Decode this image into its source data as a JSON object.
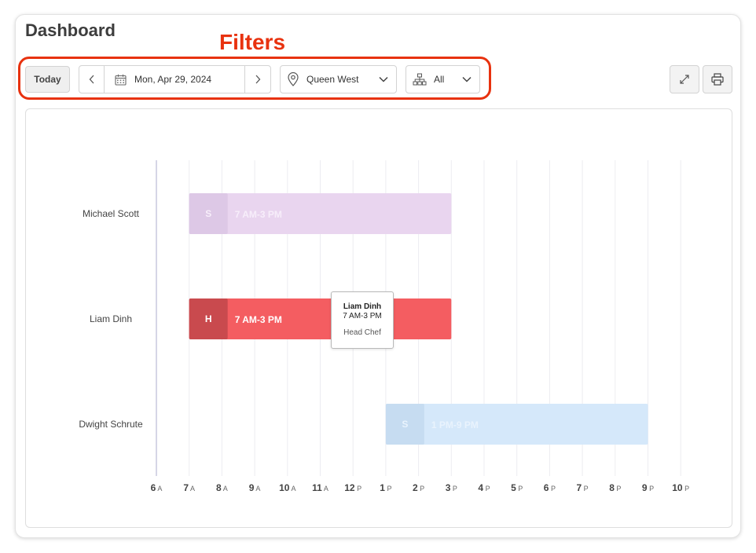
{
  "header": {
    "title": "Dashboard"
  },
  "annotation": {
    "label": "Filters",
    "color": "#e8320f"
  },
  "toolbar": {
    "today_label": "Today",
    "date_value": "Mon, Apr 29, 2024",
    "location_value": "Queen West",
    "team_value": "All",
    "icons": [
      "chevron-left-icon",
      "calendar-icon",
      "chevron-right-icon",
      "location-pin-icon",
      "chevron-down-icon",
      "org-chart-icon",
      "expand-icon",
      "printer-icon"
    ]
  },
  "tooltip": {
    "name": "Liam Dinh",
    "time": "7 AM-3 PM",
    "role": "Head Chef"
  },
  "chart_data": {
    "type": "gantt",
    "x_axis": {
      "ticks": [
        {
          "num": "6",
          "suf": "A"
        },
        {
          "num": "7",
          "suf": "A"
        },
        {
          "num": "8",
          "suf": "A"
        },
        {
          "num": "9",
          "suf": "A"
        },
        {
          "num": "10",
          "suf": "A"
        },
        {
          "num": "11",
          "suf": "A"
        },
        {
          "num": "12",
          "suf": "P"
        },
        {
          "num": "1",
          "suf": "P"
        },
        {
          "num": "2",
          "suf": "P"
        },
        {
          "num": "3",
          "suf": "P"
        },
        {
          "num": "4",
          "suf": "P"
        },
        {
          "num": "5",
          "suf": "P"
        },
        {
          "num": "6",
          "suf": "P"
        },
        {
          "num": "7",
          "suf": "P"
        },
        {
          "num": "8",
          "suf": "P"
        },
        {
          "num": "9",
          "suf": "P"
        },
        {
          "num": "10",
          "suf": "P"
        }
      ],
      "range_hours": [
        6,
        22
      ]
    },
    "rows": [
      {
        "employee": "Michael Scott",
        "badge": "S",
        "label": "7 AM-3 PM",
        "start": 7,
        "end": 15,
        "color": "#e9d5ef",
        "badge_color": "#ddc8e6",
        "text_color": "#f7eefa",
        "highlighted": false
      },
      {
        "employee": "Liam Dinh",
        "badge": "H",
        "label": "7 AM-3 PM",
        "start": 7,
        "end": 15,
        "color": "#f45d61",
        "badge_color": "#c94a4e",
        "text_color": "#ffffff",
        "highlighted": true
      },
      {
        "employee": "Dwight Schrute",
        "badge": "S",
        "label": "1 PM-9 PM",
        "start": 13,
        "end": 21,
        "color": "#d5e8fa",
        "badge_color": "#c6dcf1",
        "text_color": "#e9f3fd",
        "highlighted": false
      }
    ]
  }
}
